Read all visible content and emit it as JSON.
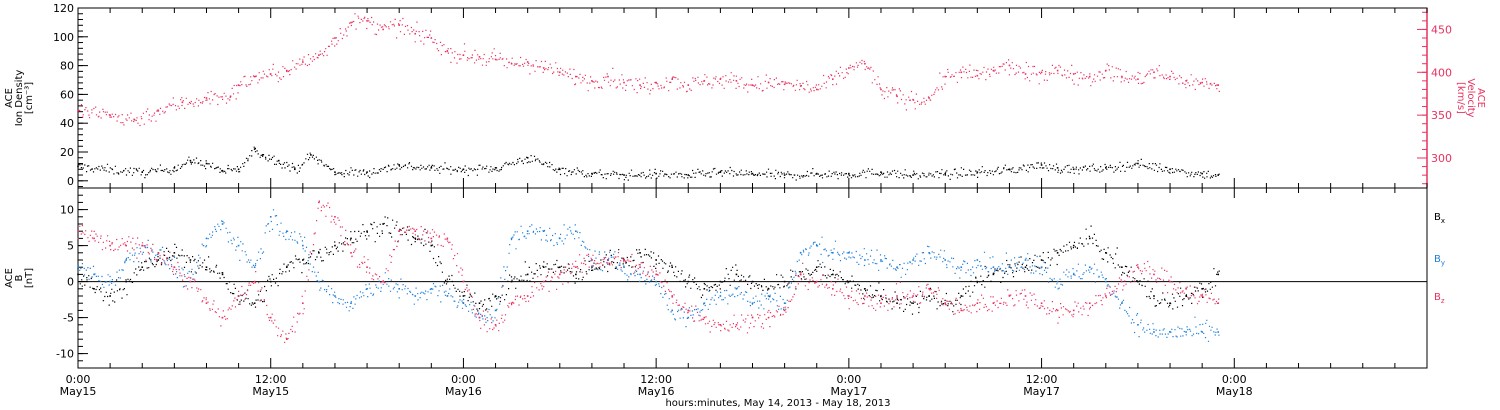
{
  "chart_data": {
    "type": "scatter",
    "xlabel": "hours:minutes, May 14, 2013 - May 18, 2013",
    "x_ticks": [
      {
        "hour": -2,
        "time": "0:00",
        "date": "May15"
      },
      {
        "hour": 10,
        "time": "12:00",
        "date": "May15"
      },
      {
        "hour": 22,
        "time": "0:00",
        "date": "May16"
      },
      {
        "hour": 34,
        "time": "12:00",
        "date": "May16"
      },
      {
        "hour": 46,
        "time": "0:00",
        "date": "May17"
      },
      {
        "hour": 58,
        "time": "12:00",
        "date": "May17"
      },
      {
        "hour": 70,
        "time": "0:00",
        "date": "May18"
      }
    ],
    "x_ticks_note": "hour values measured from 02:00 May 15, 2013 at the left edge",
    "xlim_hours": [
      -2,
      82
    ],
    "panels": [
      {
        "id": "plasma",
        "ylabel_lines": [
          "ACE",
          "Ion Density",
          "[cm⁻³]"
        ],
        "ylim": [
          -5,
          120
        ],
        "yticks": [
          0,
          20,
          40,
          60,
          80,
          100,
          120
        ],
        "y2label_lines": [
          "ACE",
          "Velocity",
          "[km/s]"
        ],
        "y2lim": [
          265,
          475
        ],
        "y2ticks": [
          300,
          350,
          400,
          450
        ],
        "series": [
          {
            "name": "Ion Density",
            "axis": "left",
            "color": "#000000",
            "x": [
              -2,
              2,
              4,
              5,
              6,
              7,
              8,
              9,
              9.5,
              10.5,
              11.5,
              12.5,
              14,
              16,
              18,
              20,
              22,
              24,
              26,
              28,
              30,
              32,
              34,
              36,
              38,
              40,
              42,
              44,
              46,
              48,
              50,
              52,
              54,
              56,
              58,
              59,
              60,
              62,
              64,
              66,
              68,
              69
            ],
            "y": [
              10,
              6,
              9,
              14,
              12,
              7,
              8,
              22,
              18,
              14,
              8,
              18,
              6,
              6,
              11,
              9,
              8,
              9,
              16,
              8,
              5,
              4,
              5,
              4,
              6,
              5,
              4,
              5,
              5,
              6,
              4,
              5,
              6,
              8,
              11,
              9,
              8,
              9,
              12,
              8,
              5,
              4
            ]
          },
          {
            "name": "Velocity",
            "axis": "right",
            "color": "#e8325f",
            "x": [
              -2,
              0,
              1.5,
              3,
              4.5,
              6,
              7.5,
              8,
              9,
              10,
              11,
              12,
              13,
              14,
              15,
              16,
              17,
              18,
              19,
              20,
              21,
              22,
              23,
              24,
              25,
              26,
              27,
              28,
              29,
              30,
              31,
              32,
              33,
              34,
              35,
              36,
              37,
              38,
              39,
              40,
              41,
              42,
              43,
              44,
              45,
              46,
              47,
              48,
              49,
              50,
              51,
              52,
              53,
              54,
              55,
              56,
              57,
              58,
              59,
              60,
              61,
              62,
              63,
              64,
              65,
              66,
              67,
              68,
              69
            ],
            "y": [
              355,
              350,
              345,
              355,
              365,
              370,
              372,
              385,
              395,
              398,
              402,
              412,
              420,
              440,
              458,
              460,
              450,
              455,
              445,
              440,
              425,
              420,
              418,
              415,
              410,
              412,
              405,
              400,
              395,
              390,
              395,
              388,
              385,
              388,
              392,
              385,
              390,
              392,
              390,
              385,
              388,
              386,
              384,
              380,
              392,
              405,
              410,
              380,
              372,
              368,
              370,
              395,
              400,
              396,
              402,
              408,
              398,
              400,
              402,
              398,
              395,
              402,
              395,
              392,
              400,
              395,
              390,
              388,
              385
            ]
          }
        ]
      },
      {
        "id": "magnetic",
        "ylabel_lines": [
          "ACE",
          "B",
          "[nT]"
        ],
        "ylim": [
          -12,
          13
        ],
        "yticks": [
          -10,
          -5,
          0,
          5,
          10
        ],
        "zero_line": true,
        "series": [
          {
            "name": "Bx",
            "color": "#000000",
            "x": [
              -2,
              -1,
              0,
              1,
              2,
              3,
              4,
              5,
              6,
              7,
              8,
              9,
              10,
              11,
              12,
              13,
              14,
              15,
              16,
              17,
              18,
              19,
              20,
              21,
              22,
              23,
              24,
              25,
              26,
              27,
              28,
              29,
              30,
              31,
              32,
              33,
              34,
              35,
              36,
              37,
              38,
              39,
              40,
              41,
              42,
              43,
              44,
              45,
              46,
              47,
              48,
              49,
              50,
              51,
              52,
              53,
              54,
              55,
              56,
              57,
              58,
              59,
              60,
              61,
              62,
              63,
              64,
              65,
              66,
              67,
              68,
              69
            ],
            "y": [
              1,
              -1,
              -2,
              0,
              2,
              3,
              4,
              3,
              2,
              1,
              -2,
              -3,
              0,
              2,
              3,
              4,
              5,
              6,
              7,
              8,
              7,
              6,
              5,
              0,
              -2,
              -3,
              -2,
              0,
              1,
              2,
              2,
              1,
              2,
              3,
              3,
              4,
              3,
              2,
              0,
              -1,
              0,
              1,
              0,
              -1,
              0,
              1,
              2,
              1,
              0,
              -1,
              -2,
              -3,
              -3,
              -2,
              -3,
              -2,
              0,
              1,
              2,
              2,
              3,
              4,
              5,
              6,
              4,
              2,
              0,
              -2,
              -3,
              -2,
              -1,
              1
            ]
          },
          {
            "name": "By",
            "color": "#1f7fdb",
            "x": [
              -2,
              -1,
              0,
              1,
              2,
              3,
              4,
              5,
              6,
              7,
              8,
              9,
              10,
              11,
              12,
              13,
              14,
              15,
              16,
              17,
              18,
              19,
              20,
              21,
              22,
              23,
              24,
              25,
              26,
              27,
              28,
              29,
              30,
              31,
              32,
              33,
              34,
              35,
              36,
              37,
              38,
              39,
              40,
              41,
              42,
              43,
              44,
              45,
              46,
              47,
              48,
              49,
              50,
              51,
              52,
              53,
              54,
              55,
              56,
              57,
              58,
              59,
              60,
              61,
              62,
              63,
              64,
              65,
              66,
              67,
              68,
              69
            ],
            "y": [
              2,
              1,
              0,
              3,
              5,
              4,
              2,
              0,
              6,
              8,
              5,
              2,
              9,
              7,
              5,
              0,
              -2,
              -3,
              -1,
              0,
              -1,
              -2,
              -1,
              -2,
              -3,
              -5,
              -4,
              6,
              7,
              7,
              6,
              7,
              3,
              3,
              2,
              1,
              0,
              -4,
              -5,
              -3,
              -2,
              -1,
              -3,
              -2,
              -3,
              4,
              5,
              4,
              4,
              3,
              3,
              2,
              3,
              4,
              3,
              2,
              3,
              2,
              2,
              3,
              2,
              0,
              1,
              2,
              0,
              -3,
              -6,
              -7,
              -7,
              -7,
              -7,
              -7
            ]
          },
          {
            "name": "Bz",
            "color": "#e8325f",
            "x": [
              -2,
              -1,
              0,
              1,
              2,
              3,
              4,
              5,
              6,
              7,
              8,
              9,
              10,
              11,
              12,
              13,
              14,
              15,
              16,
              17,
              18,
              19,
              20,
              21,
              22,
              23,
              24,
              25,
              26,
              27,
              28,
              29,
              30,
              31,
              32,
              33,
              34,
              35,
              36,
              37,
              38,
              39,
              40,
              41,
              42,
              43,
              44,
              45,
              46,
              47,
              48,
              49,
              50,
              51,
              52,
              53,
              54,
              55,
              56,
              57,
              58,
              59,
              60,
              61,
              62,
              63,
              64,
              65,
              66,
              67,
              68,
              69
            ],
            "y": [
              7,
              6,
              5,
              5,
              5,
              4,
              2,
              0,
              -3,
              -5,
              -2,
              0,
              -5,
              -8,
              -3,
              11,
              9,
              4,
              2,
              0,
              7,
              7,
              6,
              6,
              0,
              -5,
              -6,
              -3,
              -2,
              0,
              1,
              2,
              3,
              3,
              3,
              2,
              1,
              -2,
              -4,
              -5,
              -6,
              -6,
              -5,
              -5,
              -4,
              1,
              0,
              -1,
              -2,
              -2,
              -3,
              -2,
              -2,
              -1,
              -3,
              -4,
              -3,
              -3,
              -2,
              -2,
              -3,
              -4,
              -4,
              -3,
              -2,
              0,
              2,
              1,
              0,
              -1,
              -2,
              -3
            ]
          }
        ],
        "legend": {
          "placement": "right",
          "entries": [
            {
              "base": "B",
              "sub": "x",
              "color": "#000000"
            },
            {
              "base": "B",
              "sub": "y",
              "color": "#1f7fdb"
            },
            {
              "base": "B",
              "sub": "z",
              "color": "#e8325f"
            }
          ]
        }
      }
    ]
  }
}
